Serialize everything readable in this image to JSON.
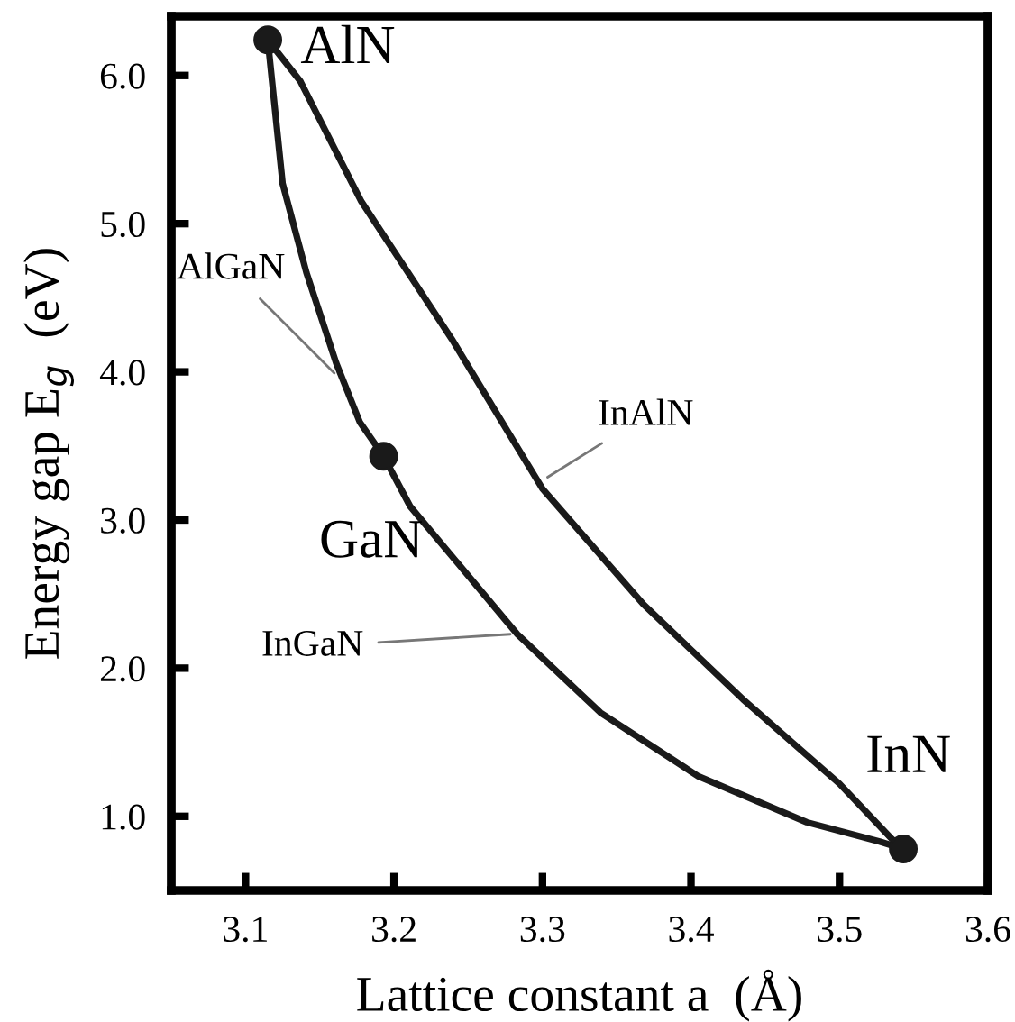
{
  "chart_data": {
    "type": "line",
    "xlabel": "Lattice constant a  (Å)",
    "ylabel": "Energy gap E$_{g}$  (eV)",
    "xlim": [
      3.05,
      3.6
    ],
    "ylim": [
      0.5,
      6.4
    ],
    "xticks": [
      3.1,
      3.2,
      3.3,
      3.4,
      3.5,
      3.6
    ],
    "yticks": [
      {
        "value": 1.0,
        "label": "1.0"
      },
      {
        "value": 2.0,
        "label": "2.0"
      },
      {
        "value": 3.0,
        "label": "3.0"
      },
      {
        "value": 4.0,
        "label": "4.0"
      },
      {
        "value": 5.0,
        "label": "5.0"
      },
      {
        "value": 6.0,
        "label": "6.0"
      }
    ],
    "grid": false,
    "legend": false,
    "series": [
      {
        "color": "#1a1a1a",
        "x": [
          3.115,
          3.125,
          3.141,
          3.161,
          3.177,
          3.193
        ],
        "values": [
          6.24,
          5.27,
          4.67,
          4.06,
          3.66,
          3.43
        ]
      },
      {
        "color": "#1a1a1a",
        "x": [
          3.193,
          3.211,
          3.283,
          3.339,
          3.405,
          3.478,
          3.527,
          3.543
        ],
        "values": [
          3.43,
          3.09,
          2.23,
          1.7,
          1.27,
          0.96,
          0.83,
          0.78
        ]
      },
      {
        "color": "#1a1a1a",
        "x": [
          3.115,
          3.137,
          3.178,
          3.239,
          3.3,
          3.368,
          3.435,
          3.5,
          3.535,
          3.543
        ],
        "values": [
          6.24,
          5.96,
          5.15,
          4.22,
          3.21,
          2.43,
          1.79,
          1.22,
          0.85,
          0.78
        ]
      },
      {
        "type": "scatter",
        "color": "#1a1a1a",
        "marker": "circle",
        "x": [
          3.115,
          3.193,
          3.543
        ],
        "values": [
          6.24,
          3.43,
          0.78
        ]
      }
    ],
    "annotations": [
      {
        "text": "AlN",
        "x": 3.115,
        "y": 6.24
      },
      {
        "text": "GaN",
        "x": 3.193,
        "y": 3.43
      },
      {
        "text": "InN",
        "x": 3.543,
        "y": 0.78
      },
      {
        "text": "AlGaN",
        "x": 3.161,
        "y": 3.98
      },
      {
        "text": "InAlN",
        "x": 3.302,
        "y": 3.28
      },
      {
        "text": "InGaN",
        "x": 3.28,
        "y": 2.23
      }
    ]
  }
}
